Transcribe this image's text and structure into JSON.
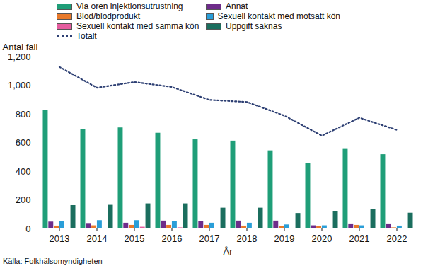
{
  "chart_data": {
    "type": "bar",
    "y_label": "Antal fall",
    "x_label": "År",
    "source": "Källa: Folkhälsomyndigheten",
    "categories": [
      "2013",
      "2014",
      "2015",
      "2016",
      "2017",
      "2018",
      "2019",
      "2020",
      "2021",
      "2022"
    ],
    "series": [
      {
        "name": "Via oren injektionsutrustning",
        "color": "#1f9e78",
        "values": [
          828,
          695,
          705,
          668,
          622,
          613,
          545,
          455,
          555,
          518
        ]
      },
      {
        "name": "Annat",
        "color": "#6e2c8a",
        "values": [
          48,
          33,
          40,
          55,
          50,
          55,
          55,
          22,
          30,
          30
        ]
      },
      {
        "name": "Blod/blodprodukt",
        "color": "#e8792a",
        "values": [
          20,
          22,
          25,
          25,
          25,
          20,
          15,
          15,
          25,
          8
        ]
      },
      {
        "name": "Sexuell kontakt med motsatt kön",
        "color": "#2a9ed8",
        "values": [
          52,
          58,
          58,
          50,
          40,
          40,
          28,
          22,
          22,
          20
        ]
      },
      {
        "name": "Sexuell kontakt med samma kön",
        "color": "#e45c9e",
        "values": [
          5,
          5,
          12,
          8,
          5,
          5,
          5,
          5,
          5,
          3
        ]
      },
      {
        "name": "Uppgift saknas",
        "color": "#1b6e5e",
        "values": [
          163,
          165,
          175,
          175,
          145,
          145,
          108,
          122,
          135,
          110
        ]
      },
      {
        "name": "Totalt",
        "color": "#2d3f73",
        "type": "line",
        "line_style": "dotted",
        "values": [
          1130,
          985,
          1025,
          990,
          900,
          885,
          790,
          650,
          775,
          690
        ]
      }
    ],
    "ylim": [
      0,
      1200
    ],
    "yticks": [
      0,
      200,
      400,
      600,
      800,
      1000,
      1200
    ],
    "grid": false,
    "legend": "top"
  }
}
